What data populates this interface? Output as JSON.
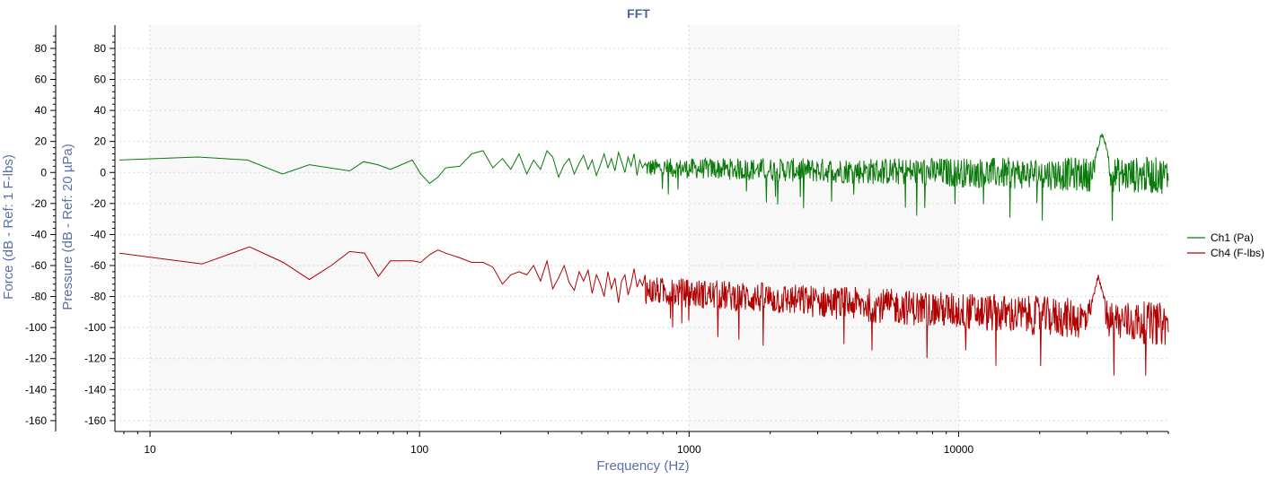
{
  "chart_data": {
    "type": "line",
    "title": "FFT",
    "xlabel": "Frequency (Hz)",
    "ylabels": [
      "Force (dB - Ref: 1 F-lbs)",
      "Pressure (dB - Ref: 20 µPa)"
    ],
    "xscale": "log",
    "xlim": [
      7.7,
      60000
    ],
    "ylim": [
      -167,
      95
    ],
    "x_ticks": [
      10,
      100,
      1000,
      10000
    ],
    "x_tick_labels": [
      "10",
      "100",
      "1000",
      "10000"
    ],
    "y_ticks": [
      80,
      60,
      40,
      20,
      0,
      -20,
      -40,
      -60,
      -80,
      -100,
      -120,
      -140,
      -160
    ],
    "y_tick_labels": [
      "80",
      "60",
      "40",
      "20",
      "0",
      "-20",
      "-40",
      "-60",
      "-80",
      "-100",
      "-120",
      "-140",
      "-160"
    ],
    "grid": true,
    "legend_position": "right",
    "series": [
      {
        "name": "Ch1 (Pa)",
        "color": "#0a7a0a",
        "x": [
          7.7,
          15,
          23,
          31,
          39,
          55,
          62,
          70,
          78,
          94,
          101,
          109,
          117,
          125,
          141,
          156,
          172,
          187,
          203,
          218,
          234,
          250,
          265,
          281,
          297,
          312,
          328,
          344,
          359,
          375,
          391,
          406,
          422,
          437,
          453,
          469,
          484,
          500,
          515,
          531,
          547,
          562,
          578,
          594,
          609,
          625,
          641,
          656,
          672,
          687
        ],
        "y": [
          8,
          10,
          8,
          -1,
          5,
          1,
          7,
          5,
          2,
          8,
          -1,
          -7,
          -3,
          3,
          4,
          12,
          14,
          3,
          9,
          2,
          12,
          -1,
          8,
          2,
          14,
          10,
          -3,
          5,
          9,
          -1,
          6,
          11,
          2,
          8,
          -2,
          5,
          12,
          3,
          9,
          1,
          13,
          7,
          0,
          10,
          4,
          12,
          -2,
          8,
          3,
          6
        ],
        "tail_noise": {
          "from_hz": 687,
          "to_hz": 60000,
          "mean_db_start": 3,
          "mean_db_end": -2,
          "spread_db_start": 6,
          "spread_db_end": 12,
          "peak_hz": 34000,
          "peak_db": 28,
          "min_db": -42
        }
      },
      {
        "name": "Ch4 (F-lbs)",
        "color": "#b00000",
        "x": [
          7.7,
          15.6,
          23.4,
          31.2,
          39,
          47,
          55,
          62.5,
          70.3,
          78,
          94,
          101,
          109,
          117,
          125,
          141,
          156,
          172,
          187,
          203,
          218,
          234,
          250,
          265,
          281,
          297,
          312,
          328,
          344,
          359,
          375,
          391,
          406,
          422,
          437,
          453,
          469,
          484,
          500,
          515,
          531,
          547,
          562,
          578,
          594,
          609,
          625,
          641,
          656,
          672,
          687
        ],
        "y": [
          -52,
          -59,
          -48,
          -58,
          -69,
          -60,
          -51,
          -52,
          -67,
          -57,
          -57,
          -58,
          -53,
          -50,
          -52,
          -55,
          -58,
          -58,
          -61,
          -72,
          -66,
          -64,
          -66,
          -60,
          -70,
          -57,
          -75,
          -68,
          -60,
          -71,
          -76,
          -64,
          -70,
          -63,
          -78,
          -66,
          -72,
          -80,
          -64,
          -75,
          -68,
          -84,
          -70,
          -66,
          -79,
          -72,
          -62,
          -74,
          -69,
          -73,
          -66
        ],
        "tail_noise": {
          "from_hz": 687,
          "to_hz": 60000,
          "mean_db_start": -76,
          "mean_db_end": -98,
          "spread_db_start": 9,
          "spread_db_end": 14,
          "peak_hz": 33000,
          "peak_db": -65,
          "min_db": -131
        }
      }
    ]
  }
}
